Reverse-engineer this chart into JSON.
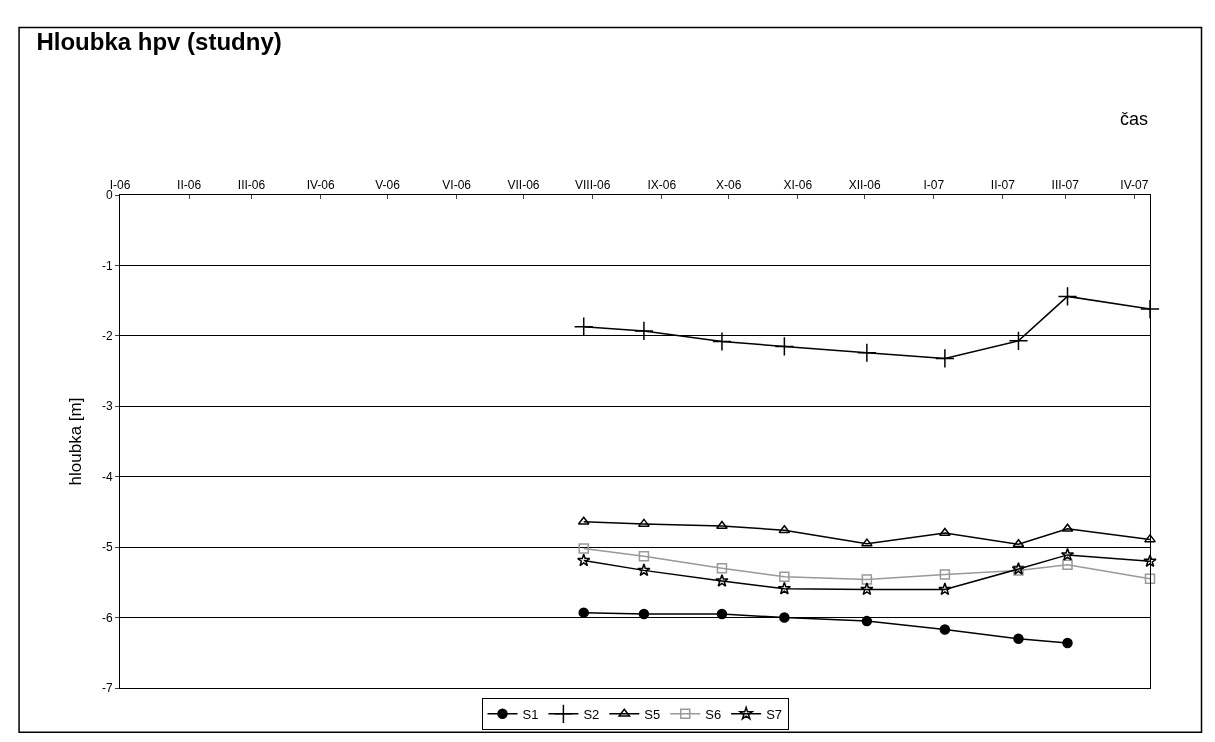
{
  "chart_data": {
    "type": "line",
    "title": "Hloubka hpv (studny)",
    "xlabel": "čas",
    "ylabel": "hloubka [m]",
    "x": [
      "2006-07-28",
      "2006-08-24",
      "2006-09-28",
      "2006-10-26",
      "2006-12-02",
      "2007-01-06",
      "2007-02-08",
      "2007-03-02",
      "2007-04-08"
    ],
    "series": [
      {
        "name": "S1",
        "color": "#000000",
        "marker": "circle",
        "values": [
          -5.93,
          -5.95,
          -5.95,
          -6.0,
          -6.05,
          -6.17,
          -6.3,
          -6.36,
          null
        ]
      },
      {
        "name": "S2",
        "color": "#000000",
        "marker": "cross",
        "values": [
          -1.87,
          -1.93,
          -2.08,
          -2.15,
          -2.24,
          -2.32,
          -2.07,
          -1.44,
          -1.62
        ]
      },
      {
        "name": "S5",
        "color": "#000000",
        "marker": "triangle",
        "values": [
          -4.64,
          -4.67,
          -4.7,
          -4.76,
          -4.95,
          -4.8,
          -4.96,
          -4.74,
          -4.89
        ]
      },
      {
        "name": "S6",
        "color": "#999999",
        "marker": "square",
        "values": [
          -5.02,
          -5.13,
          -5.3,
          -5.42,
          -5.46,
          -5.39,
          -5.33,
          -5.25,
          -5.45
        ]
      },
      {
        "name": "S7",
        "color": "#000000",
        "marker": "star",
        "values": [
          -5.19,
          -5.33,
          -5.48,
          -5.59,
          -5.6,
          -5.6,
          -5.31,
          -5.11,
          -5.2
        ]
      }
    ],
    "xlim": [
      "2006-01-01",
      "2007-04-08"
    ],
    "xticks": [
      {
        "value": "2006-01-01",
        "label": "I-06"
      },
      {
        "value": "2006-02-01",
        "label": "II-06"
      },
      {
        "value": "2006-03-01",
        "label": "III-06"
      },
      {
        "value": "2006-04-01",
        "label": "IV-06"
      },
      {
        "value": "2006-05-01",
        "label": "V-06"
      },
      {
        "value": "2006-06-01",
        "label": "VI-06"
      },
      {
        "value": "2006-07-01",
        "label": "VII-06"
      },
      {
        "value": "2006-08-01",
        "label": "VIII-06"
      },
      {
        "value": "2006-09-01",
        "label": "IX-06"
      },
      {
        "value": "2006-10-01",
        "label": "X-06"
      },
      {
        "value": "2006-11-01",
        "label": "XI-06"
      },
      {
        "value": "2006-12-01",
        "label": "XII-06"
      },
      {
        "value": "2007-01-01",
        "label": "I-07"
      },
      {
        "value": "2007-02-01",
        "label": "II-07"
      },
      {
        "value": "2007-03-01",
        "label": "III-07"
      },
      {
        "value": "2007-04-01",
        "label": "IV-07"
      }
    ],
    "ylim": [
      -7,
      0
    ],
    "yticks": [
      -7,
      -6,
      -5,
      -4,
      -3,
      -2,
      -1,
      0
    ],
    "grid": "y",
    "legend": "bottom",
    "line_style": "solid"
  }
}
